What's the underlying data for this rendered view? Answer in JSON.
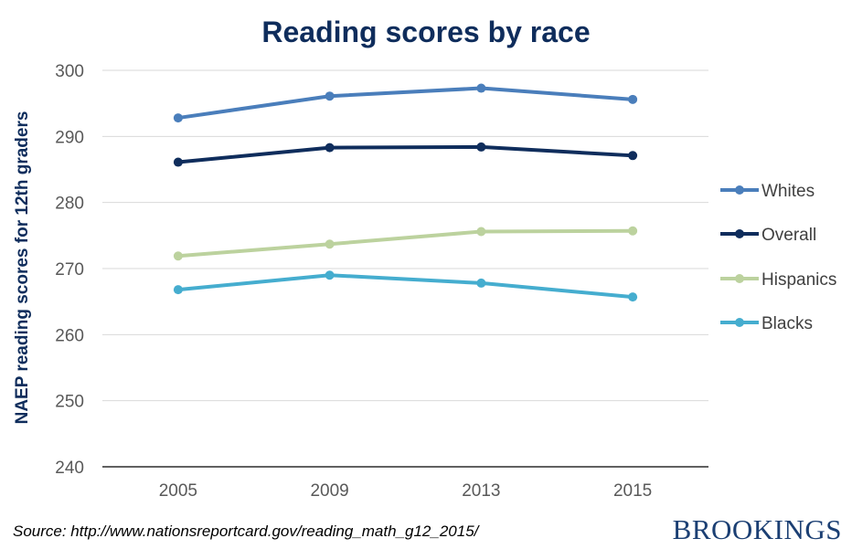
{
  "chart_data": {
    "type": "line",
    "title": "Reading scores by race",
    "xlabel": "",
    "ylabel": "NAEP reading scores for 12th graders",
    "categories": [
      "2005",
      "2009",
      "2013",
      "2015"
    ],
    "ylim": [
      240,
      300
    ],
    "yticks": [
      240,
      250,
      260,
      270,
      280,
      290,
      300
    ],
    "grid": "horizontal",
    "legend_position": "right",
    "series": [
      {
        "name": "Whites",
        "color": "#4a7ebb",
        "values": [
          292.8,
          296.1,
          297.3,
          295.6
        ]
      },
      {
        "name": "Overall",
        "color": "#0f2d5c",
        "values": [
          286.1,
          288.3,
          288.4,
          287.1
        ]
      },
      {
        "name": "Hispanics",
        "color": "#bcd29e",
        "values": [
          271.9,
          273.7,
          275.6,
          275.7
        ]
      },
      {
        "name": "Blacks",
        "color": "#45adcf",
        "values": [
          266.8,
          269.0,
          267.8,
          265.7
        ]
      }
    ]
  },
  "footer": {
    "source": "Source: http://www.nationsreportcard.gov/reading_math_g12_2015/",
    "brand": "BROOKINGS"
  }
}
